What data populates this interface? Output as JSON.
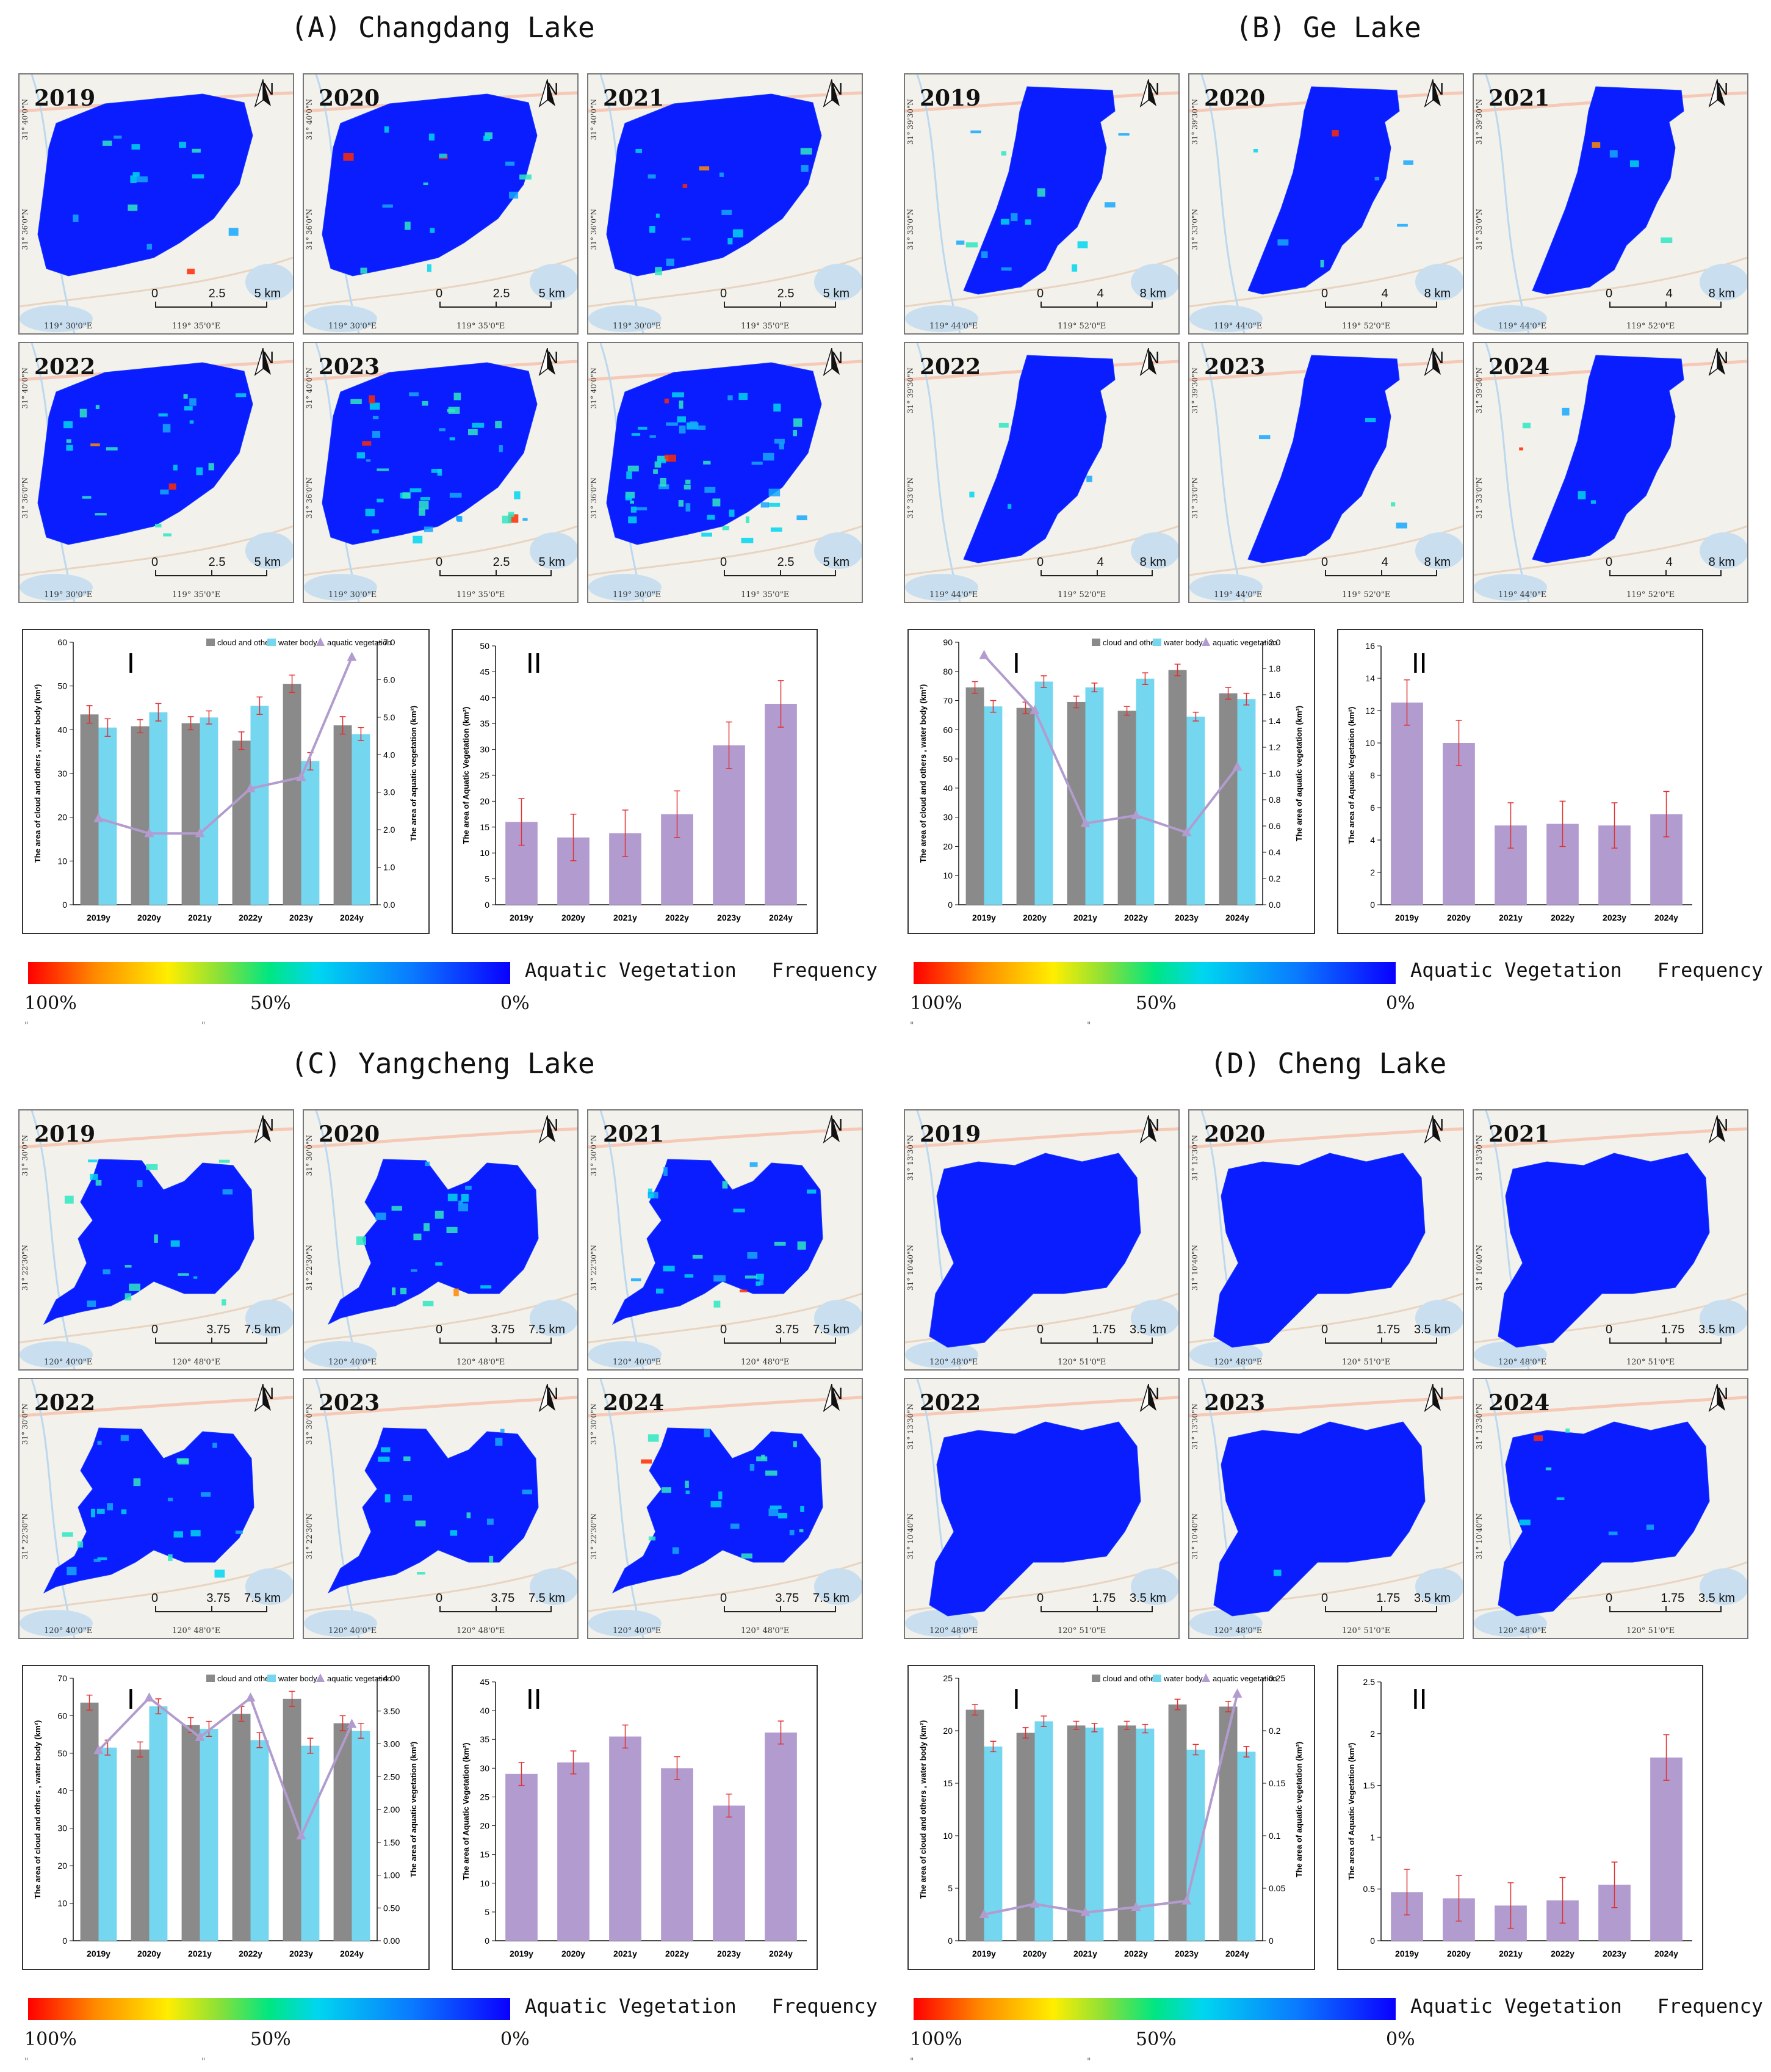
{
  "colors": {
    "gray_bar": "#8a8a8a",
    "cyan_bar": "#74d6ef",
    "purple": "#b29ccf",
    "error": "#e03030",
    "lake_fill": "#0a1dff",
    "water_bg": "#c9dff0",
    "map_bg": "#f2f1ec"
  },
  "legend": {
    "title": "Aquatic Vegetation   Frequency",
    "tick_high": "100%",
    "tick_mid": "50%",
    "tick_low": "0%",
    "mark": "\""
  },
  "chart_labels": {
    "roman_1": "I",
    "roman_2": "II",
    "legend_cloud": "cloud and others",
    "legend_water": "water body",
    "legend_veg": "aquatic vegetation",
    "ylabel_left_A": "The area of cloud and others , water body (km²)",
    "ylabel_left": "The area of cloud and others , water body (km²)",
    "ylabel_right": "The area of aquatic vegetation (km²)",
    "ylabel_veg": "The area of Aquatic Vegetation (km²)"
  },
  "panels": [
    {
      "id": "A",
      "title": "(A) Changdang Lake",
      "years": [
        "2019",
        "2020",
        "2021",
        "2022",
        "2023",
        ""
      ],
      "scale": [
        "0",
        "2.5",
        "5 km"
      ],
      "lon": [
        "119° 30'0\"E",
        "119° 35'0\"E"
      ],
      "lat": [
        "31° 40'0\"N",
        "31° 36'0\"N"
      ],
      "shape": "changdang",
      "veg_levels": [
        0.15,
        0.18,
        0.17,
        0.25,
        0.45,
        0.6
      ]
    },
    {
      "id": "B",
      "title": "(B) Ge Lake",
      "years": [
        "2019",
        "2020",
        "2021",
        "2022",
        "2023",
        "2024"
      ],
      "scale": [
        "0",
        "4",
        "8 km"
      ],
      "lon": [
        "119° 44'0\"E",
        "119° 52'0\"E"
      ],
      "lat": [
        "31° 39'30\"N",
        "31° 33'0\"N"
      ],
      "shape": "ge",
      "veg_levels": [
        0.15,
        0.08,
        0.04,
        0.04,
        0.04,
        0.05
      ]
    },
    {
      "id": "C",
      "title": "(C) Yangcheng Lake",
      "years": [
        "2019",
        "2020",
        "2021",
        "2022",
        "2023",
        "2024"
      ],
      "scale": [
        "0",
        "3.75",
        "7.5 km"
      ],
      "lon": [
        "120° 40'0\"E",
        "120° 48'0\"E"
      ],
      "lat": [
        "31° 30'0\"N",
        "31° 22'30\"N"
      ],
      "shape": "yangcheng",
      "veg_levels": [
        0.2,
        0.22,
        0.25,
        0.24,
        0.15,
        0.25
      ]
    },
    {
      "id": "D",
      "title": "(D) Cheng Lake",
      "years": [
        "2019",
        "2020",
        "2021",
        "2022",
        "2023",
        "2024"
      ],
      "scale": [
        "0",
        "1.75",
        "3.5 km"
      ],
      "lon": [
        "120° 48'0\"E",
        "120° 51'0\"E"
      ],
      "lat": [
        "31° 13'30\"N",
        "31° 10'40\"N"
      ],
      "shape": "cheng",
      "veg_levels": [
        0.0,
        0.0,
        0.0,
        0.0,
        0.01,
        0.08
      ]
    }
  ],
  "chart_data": [
    {
      "panel": "A",
      "chart": "I",
      "type": "bar+line",
      "categories": [
        "2019y",
        "2020y",
        "2021y",
        "2022y",
        "2023y",
        "2024y"
      ],
      "series": [
        {
          "name": "cloud and others",
          "axis": "left",
          "values": [
            43.5,
            40.8,
            41.5,
            37.5,
            50.5,
            41.0
          ],
          "errors": [
            2,
            1.5,
            1.5,
            2,
            2,
            2
          ]
        },
        {
          "name": "water body",
          "axis": "left",
          "values": [
            40.5,
            44.0,
            42.8,
            45.5,
            32.8,
            39.0
          ],
          "errors": [
            2,
            2,
            1.5,
            2,
            2,
            1.5
          ]
        },
        {
          "name": "aquatic vegetation",
          "axis": "right",
          "type": "line",
          "values": [
            2.3,
            1.9,
            1.9,
            3.1,
            3.4,
            6.6
          ]
        }
      ],
      "ylabel_left": "The area of cloud and others , water body (km²)",
      "ylabel_right": "The area of aquatic vegetation (km²)",
      "ylim_left": [
        0,
        60
      ],
      "yticks_left": [
        0,
        10,
        20,
        30,
        40,
        50,
        60
      ],
      "ylim_right": [
        0,
        7
      ],
      "yticks_right": [
        "0.0",
        "1.0",
        "2.0",
        "3.0",
        "4.0",
        "5.0",
        "6.0",
        "7.0"
      ]
    },
    {
      "panel": "A",
      "chart": "II",
      "type": "bar",
      "categories": [
        "2019y",
        "2020y",
        "2021y",
        "2022y",
        "2023y",
        "2024y"
      ],
      "values": [
        16,
        13,
        13.8,
        17.5,
        30.8,
        38.8
      ],
      "errors": [
        4.5,
        4.5,
        4.5,
        4.5,
        4.5,
        4.5
      ],
      "ylabel": "The area of Aquatic Vegetation (km²)",
      "ylim": [
        0,
        50
      ],
      "yticks": [
        0,
        5,
        10,
        15,
        20,
        25,
        30,
        35,
        40,
        45,
        50
      ]
    },
    {
      "panel": "B",
      "chart": "I",
      "type": "bar+line",
      "categories": [
        "2019y",
        "2020y",
        "2021y",
        "2022y",
        "2023y",
        "2024y"
      ],
      "series": [
        {
          "name": "cloud and others",
          "axis": "left",
          "values": [
            74.5,
            67.5,
            69.5,
            66.5,
            80.5,
            72.5
          ],
          "errors": [
            2,
            2,
            2,
            1.5,
            2,
            2
          ]
        },
        {
          "name": "water body",
          "axis": "left",
          "values": [
            68.0,
            76.5,
            74.5,
            77.5,
            64.5,
            70.5
          ],
          "errors": [
            2,
            2,
            1.5,
            2,
            1.5,
            2
          ]
        },
        {
          "name": "aquatic vegetation",
          "axis": "right",
          "type": "line",
          "values": [
            1.9,
            1.48,
            0.62,
            0.68,
            0.55,
            1.05
          ]
        }
      ],
      "ylabel_left": "The area of cloud and others , water body (km²)",
      "ylabel_right": "The area of aquatic vegetation (km²)",
      "ylim_left": [
        0,
        90
      ],
      "yticks_left": [
        0,
        10,
        20,
        30,
        40,
        50,
        60,
        70,
        80,
        90
      ],
      "ylim_right": [
        0,
        2
      ],
      "yticks_right": [
        "0.0",
        "0.2",
        "0.4",
        "0.6",
        "0.8",
        "1.0",
        "1.2",
        "1.4",
        "1.6",
        "1.8",
        "2.0"
      ]
    },
    {
      "panel": "B",
      "chart": "II",
      "type": "bar",
      "categories": [
        "2019y",
        "2020y",
        "2021y",
        "2022y",
        "2023y",
        "2024y"
      ],
      "values": [
        12.5,
        10.0,
        4.9,
        5.0,
        4.9,
        5.6
      ],
      "errors": [
        1.4,
        1.4,
        1.4,
        1.4,
        1.4,
        1.4
      ],
      "ylabel": "The area of Aquatic Vegetation (km²)",
      "ylim": [
        0,
        16
      ],
      "yticks": [
        0,
        2,
        4,
        6,
        8,
        10,
        12,
        14,
        16
      ]
    },
    {
      "panel": "C",
      "chart": "I",
      "type": "bar+line",
      "categories": [
        "2019y",
        "2020y",
        "2021y",
        "2022y",
        "2023y",
        "2024y"
      ],
      "series": [
        {
          "name": "cloud and others",
          "axis": "left",
          "values": [
            63.5,
            51.0,
            57.5,
            60.5,
            64.5,
            58.0
          ],
          "errors": [
            2,
            2,
            2,
            2,
            2,
            2
          ]
        },
        {
          "name": "water body",
          "axis": "left",
          "values": [
            51.5,
            62.5,
            56.5,
            53.5,
            52.0,
            56.0
          ],
          "errors": [
            2,
            2,
            2,
            2,
            2,
            2
          ]
        },
        {
          "name": "aquatic vegetation",
          "axis": "right",
          "type": "line",
          "values": [
            2.9,
            3.7,
            3.1,
            3.7,
            1.6,
            3.3
          ]
        }
      ],
      "ylabel_left": "The area of cloud and others , water body (km²)",
      "ylabel_right": "The area of aquatic vegetation (km²)",
      "ylim_left": [
        0,
        70
      ],
      "yticks_left": [
        0,
        10,
        20,
        30,
        40,
        50,
        60,
        70
      ],
      "ylim_right": [
        0,
        4
      ],
      "yticks_right": [
        "0.00",
        "0.50",
        "1.00",
        "1.50",
        "2.00",
        "2.50",
        "3.00",
        "3.50",
        "4.00"
      ]
    },
    {
      "panel": "C",
      "chart": "II",
      "type": "bar",
      "categories": [
        "2019y",
        "2020y",
        "2021y",
        "2022y",
        "2023y",
        "2024y"
      ],
      "values": [
        29.0,
        31.0,
        35.5,
        30.0,
        23.5,
        36.2
      ],
      "errors": [
        2,
        2,
        2,
        2,
        2,
        2
      ],
      "ylabel": "The area of Aquatic Vegetation (km²)",
      "ylim": [
        0,
        45
      ],
      "yticks": [
        0,
        5,
        10,
        15,
        20,
        25,
        30,
        35,
        40,
        45
      ]
    },
    {
      "panel": "D",
      "chart": "I",
      "type": "bar+line",
      "categories": [
        "2019y",
        "2020y",
        "2021y",
        "2022y",
        "2023y",
        "2024y"
      ],
      "series": [
        {
          "name": "cloud and others",
          "axis": "left",
          "values": [
            22.0,
            19.8,
            20.5,
            20.5,
            22.5,
            22.3
          ],
          "errors": [
            0.5,
            0.5,
            0.4,
            0.4,
            0.5,
            0.5
          ]
        },
        {
          "name": "water body",
          "axis": "left",
          "values": [
            18.5,
            20.9,
            20.3,
            20.2,
            18.2,
            18.0
          ],
          "errors": [
            0.5,
            0.5,
            0.4,
            0.4,
            0.5,
            0.5
          ]
        },
        {
          "name": "aquatic vegetation",
          "axis": "right",
          "type": "line",
          "values": [
            0.025,
            0.035,
            0.027,
            0.032,
            0.038,
            0.235
          ]
        }
      ],
      "ylabel_left": "The area of cloud and others , water body (km²)",
      "ylabel_right": "The area of aquatic vegetation (km²)",
      "ylim_left": [
        0,
        25
      ],
      "yticks_left": [
        0,
        5,
        10,
        15,
        20,
        25
      ],
      "ylim_right": [
        0,
        0.25
      ],
      "yticks_right": [
        "0",
        "0.05",
        "0.1",
        "0.15",
        "0.2",
        "0.25"
      ]
    },
    {
      "panel": "D",
      "chart": "II",
      "type": "bar",
      "categories": [
        "2019y",
        "2020y",
        "2021y",
        "2022y",
        "2023y",
        "2024y"
      ],
      "values": [
        0.47,
        0.41,
        0.34,
        0.39,
        0.54,
        1.77
      ],
      "errors": [
        0.22,
        0.22,
        0.22,
        0.22,
        0.22,
        0.22
      ],
      "ylabel": "The area of Aquatic Vegetation (km²)",
      "ylim": [
        0,
        2.5
      ],
      "yticks": [
        "0",
        "0.5",
        "1",
        "1.5",
        "2",
        "2.5"
      ]
    }
  ]
}
